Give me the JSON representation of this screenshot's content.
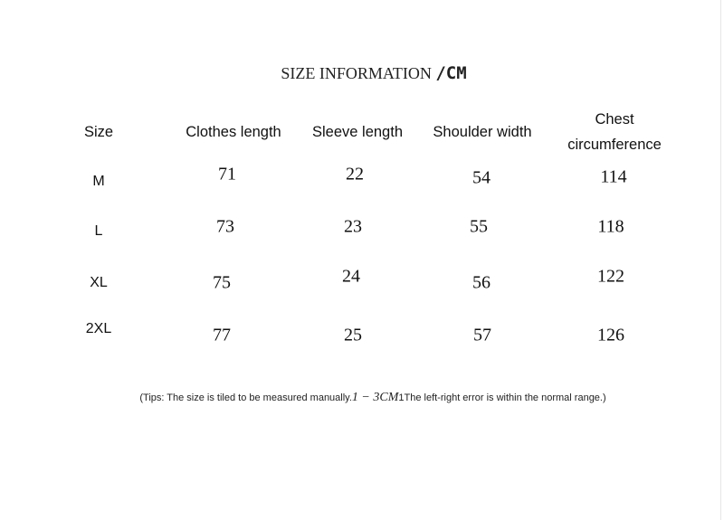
{
  "title": {
    "text": "SIZE INFORMATION ",
    "unit": "/CM"
  },
  "table": {
    "headers": [
      "Size",
      "Clothes length",
      "Sleeve length",
      "Shoulder width",
      "Chest circumference"
    ],
    "rows": [
      {
        "size": "M",
        "values": [
          "71",
          "22",
          "54",
          "114"
        ]
      },
      {
        "size": "L",
        "values": [
          "73",
          "23",
          "55",
          "118"
        ]
      },
      {
        "size": "XL",
        "values": [
          "75",
          "24",
          "56",
          "122"
        ]
      },
      {
        "size": "2XL",
        "values": [
          "77",
          "25",
          "57",
          "126"
        ]
      }
    ]
  },
  "tips": {
    "before": "(Tips: The size is tiled to be measured manually.",
    "math": "1 − 3CM",
    "after": "1The left-right error is within the normal range.)"
  }
}
